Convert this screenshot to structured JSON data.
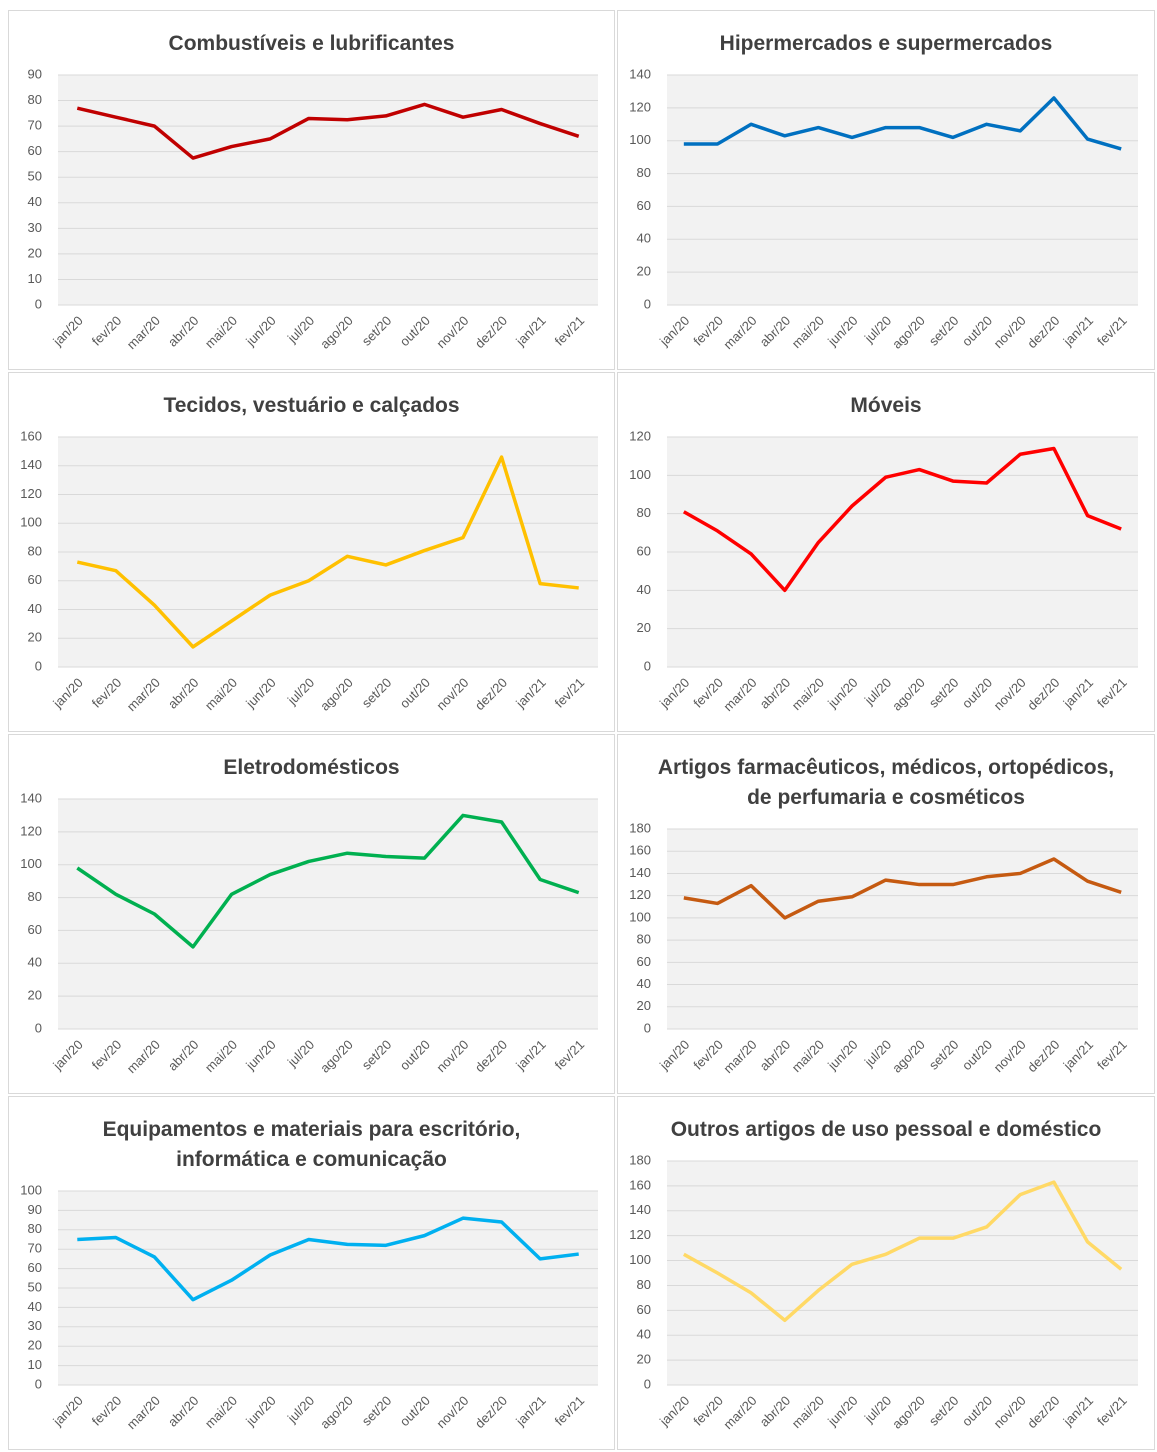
{
  "chart_data": [
    {
      "type": "line",
      "title": "Combustíveis e lubrificantes",
      "categories": [
        "jan/20",
        "fev/20",
        "mar/20",
        "abr/20",
        "mai/20",
        "jun/20",
        "jul/20",
        "ago/20",
        "set/20",
        "out/20",
        "nov/20",
        "dez/20",
        "jan/21",
        "fev/21"
      ],
      "series": [
        {
          "name": "Combustíveis e lubrificantes",
          "color": "#c00000",
          "values": [
            77,
            73.5,
            70,
            57.5,
            62,
            65,
            73,
            72.5,
            74,
            78.5,
            73.5,
            76.5,
            71,
            66
          ]
        }
      ],
      "ylim": [
        0,
        90
      ],
      "yticks": [
        0,
        10,
        20,
        30,
        40,
        50,
        60,
        70,
        80,
        90
      ],
      "grid": true
    },
    {
      "type": "line",
      "title": "Hipermercados e supermercados",
      "categories": [
        "jan/20",
        "fev/20",
        "mar/20",
        "abr/20",
        "mai/20",
        "jun/20",
        "jul/20",
        "ago/20",
        "set/20",
        "out/20",
        "nov/20",
        "dez/20",
        "jan/21",
        "fev/21"
      ],
      "series": [
        {
          "name": "Hipermercados e supermercados",
          "color": "#0070c0",
          "values": [
            98,
            98,
            110,
            103,
            108,
            102,
            108,
            108,
            102,
            110,
            106,
            126,
            101,
            95
          ]
        }
      ],
      "ylim": [
        0,
        140
      ],
      "yticks": [
        0,
        20,
        40,
        60,
        80,
        100,
        120,
        140
      ],
      "grid": true
    },
    {
      "type": "line",
      "title": "Tecidos, vestuário e calçados",
      "categories": [
        "jan/20",
        "fev/20",
        "mar/20",
        "abr/20",
        "mai/20",
        "jun/20",
        "jul/20",
        "ago/20",
        "set/20",
        "out/20",
        "nov/20",
        "dez/20",
        "jan/21",
        "fev/21"
      ],
      "series": [
        {
          "name": "Tecidos, vestuário e calçados",
          "color": "#ffc000",
          "values": [
            73,
            67,
            43,
            14,
            32,
            50,
            60,
            77,
            71,
            81,
            90,
            146,
            58,
            55
          ]
        }
      ],
      "ylim": [
        0,
        160
      ],
      "yticks": [
        0,
        20,
        40,
        60,
        80,
        100,
        120,
        140,
        160
      ],
      "grid": true
    },
    {
      "type": "line",
      "title": "Móveis",
      "categories": [
        "jan/20",
        "fev/20",
        "mar/20",
        "abr/20",
        "mai/20",
        "jun/20",
        "jul/20",
        "ago/20",
        "set/20",
        "out/20",
        "nov/20",
        "dez/20",
        "jan/21",
        "fev/21"
      ],
      "series": [
        {
          "name": "Móveis",
          "color": "#ff0000",
          "values": [
            81,
            71,
            59,
            40,
            65,
            84,
            99,
            103,
            97,
            96,
            111,
            114,
            79,
            72
          ]
        }
      ],
      "ylim": [
        0,
        120
      ],
      "yticks": [
        0,
        20,
        40,
        60,
        80,
        100,
        120
      ],
      "grid": true
    },
    {
      "type": "line",
      "title": "Eletrodomésticos",
      "categories": [
        "jan/20",
        "fev/20",
        "mar/20",
        "abr/20",
        "mai/20",
        "jun/20",
        "jul/20",
        "ago/20",
        "set/20",
        "out/20",
        "nov/20",
        "dez/20",
        "jan/21",
        "fev/21"
      ],
      "series": [
        {
          "name": "Eletrodomésticos",
          "color": "#00b050",
          "values": [
            98,
            82,
            70,
            50,
            82,
            94,
            102,
            107,
            105,
            104,
            130,
            126,
            91,
            83
          ]
        }
      ],
      "ylim": [
        0,
        140
      ],
      "yticks": [
        0,
        20,
        40,
        60,
        80,
        100,
        120,
        140
      ],
      "grid": true
    },
    {
      "type": "line",
      "title": "Artigos farmacêuticos, médicos, ortopédicos, de perfumaria e cosméticos",
      "categories": [
        "jan/20",
        "fev/20",
        "mar/20",
        "abr/20",
        "mai/20",
        "jun/20",
        "jul/20",
        "ago/20",
        "set/20",
        "out/20",
        "nov/20",
        "dez/20",
        "jan/21",
        "fev/21"
      ],
      "series": [
        {
          "name": "Artigos farmacêuticos, médicos, ortopédicos, de perfumaria e cosméticos",
          "color": "#c55a11",
          "values": [
            118,
            113,
            129,
            100,
            115,
            119,
            134,
            130,
            130,
            137,
            140,
            153,
            133,
            123
          ]
        }
      ],
      "ylim": [
        0,
        180
      ],
      "yticks": [
        0,
        20,
        40,
        60,
        80,
        100,
        120,
        140,
        160,
        180
      ],
      "grid": true
    },
    {
      "type": "line",
      "title": "Equipamentos e materiais para escritório, informática e comunicação",
      "categories": [
        "jan/20",
        "fev/20",
        "mar/20",
        "abr/20",
        "mai/20",
        "jun/20",
        "jul/20",
        "ago/20",
        "set/20",
        "out/20",
        "nov/20",
        "dez/20",
        "jan/21",
        "fev/21"
      ],
      "series": [
        {
          "name": "Equipamentos e materiais para escritório, informática e comunicação",
          "color": "#00b0f0",
          "values": [
            75,
            76,
            66,
            44,
            54,
            67,
            75,
            72.5,
            72,
            77,
            86,
            84,
            65,
            67.5
          ]
        }
      ],
      "ylim": [
        0,
        100
      ],
      "yticks": [
        0,
        10,
        20,
        30,
        40,
        50,
        60,
        70,
        80,
        90,
        100
      ],
      "grid": true
    },
    {
      "type": "line",
      "title": "Outros artigos de uso pessoal e doméstico",
      "categories": [
        "jan/20",
        "fev/20",
        "mar/20",
        "abr/20",
        "mai/20",
        "jun/20",
        "jul/20",
        "ago/20",
        "set/20",
        "out/20",
        "nov/20",
        "dez/20",
        "jan/21",
        "fev/21"
      ],
      "series": [
        {
          "name": "Outros artigos de uso pessoal e doméstico",
          "color": "#ffd966",
          "values": [
            105,
            90,
            74,
            52,
            76,
            97,
            105,
            118,
            118,
            127,
            153,
            163,
            115,
            93
          ]
        }
      ],
      "ylim": [
        0,
        180
      ],
      "yticks": [
        0,
        20,
        40,
        60,
        80,
        100,
        120,
        140,
        160,
        180
      ],
      "grid": true
    }
  ]
}
